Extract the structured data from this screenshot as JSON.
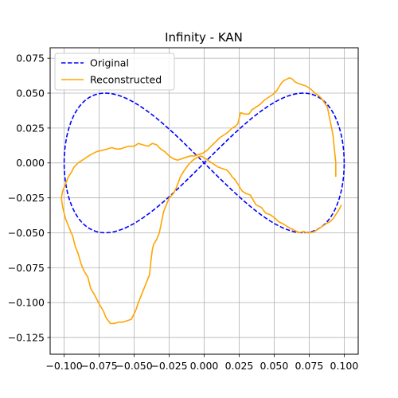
{
  "chart_data": {
    "type": "line",
    "title": "Infinity - KAN",
    "xlabel": "",
    "ylabel": "",
    "xlim": [
      -0.11,
      0.11
    ],
    "ylim": [
      -0.137,
      0.0825
    ],
    "grid": true,
    "legend_placement": "top-left",
    "xticks": [
      -0.1,
      -0.075,
      -0.05,
      -0.025,
      0.0,
      0.025,
      0.05,
      0.075,
      0.1
    ],
    "xtick_labels": [
      "−0.100",
      "−0.075",
      "−0.050",
      "−0.025",
      "0.000",
      "0.025",
      "0.050",
      "0.075",
      "0.100"
    ],
    "yticks": [
      -0.125,
      -0.1,
      -0.075,
      -0.05,
      -0.025,
      0.0,
      0.025,
      0.05,
      0.075
    ],
    "ytick_labels": [
      "−0.125",
      "−0.100",
      "−0.075",
      "−0.050",
      "−0.025",
      "0.000",
      "0.025",
      "0.050",
      "0.075"
    ],
    "series": [
      {
        "name": "Original",
        "color": "#0000ff",
        "style": "dashed",
        "shape": "lemniscate of Gerono: x = 0.1*cos(t), y = 0.05*sin(2t)",
        "x": [
          0.1,
          0.0924,
          0.0707,
          0.0383,
          0.0,
          -0.0383,
          -0.0707,
          -0.0924,
          -0.1,
          -0.0924,
          -0.0707,
          -0.0383,
          0.0,
          0.0383,
          0.0707,
          0.0924,
          0.1
        ],
        "y": [
          0.0,
          0.0354,
          0.05,
          0.0354,
          0.0,
          -0.0354,
          -0.05,
          -0.0354,
          0.0,
          0.0354,
          0.05,
          0.0354,
          0.0,
          -0.0354,
          -0.05,
          -0.0354,
          0.0
        ]
      },
      {
        "name": "Reconstructed",
        "color": "#ffa500",
        "style": "solid",
        "x": [
          0.098,
          0.096,
          0.094,
          0.092,
          0.09,
          0.088,
          0.085,
          0.082,
          0.079,
          0.076,
          0.073,
          0.071,
          0.068,
          0.064,
          0.06,
          0.057,
          0.053,
          0.05,
          0.047,
          0.044,
          0.041,
          0.037,
          0.033,
          0.03,
          0.027,
          0.024,
          0.022,
          0.02,
          0.018,
          0.016,
          0.013,
          0.01,
          0.007,
          0.004,
          0.001,
          -0.002,
          -0.005,
          -0.008,
          -0.011,
          -0.014,
          -0.017,
          -0.02,
          -0.022,
          -0.025,
          -0.027,
          -0.029,
          -0.03,
          -0.031,
          -0.032,
          -0.034,
          -0.036,
          -0.037,
          -0.038,
          -0.039,
          -0.041,
          -0.043,
          -0.045,
          -0.047,
          -0.049,
          -0.052,
          -0.055,
          -0.058,
          -0.061,
          -0.064,
          -0.067,
          -0.07,
          -0.072,
          -0.075,
          -0.078,
          -0.081,
          -0.083,
          -0.086,
          -0.088,
          -0.09,
          -0.092,
          -0.094,
          -0.095,
          -0.097,
          -0.099,
          -0.101,
          -0.102,
          -0.101,
          -0.099,
          -0.097,
          -0.095,
          -0.093,
          -0.09,
          -0.087,
          -0.084,
          -0.081,
          -0.077,
          -0.073,
          -0.069,
          -0.066,
          -0.063,
          -0.06,
          -0.057,
          -0.054,
          -0.05,
          -0.047,
          -0.044,
          -0.04,
          -0.037,
          -0.034,
          -0.031,
          -0.028,
          -0.025,
          -0.022,
          -0.019,
          -0.016,
          -0.013,
          -0.01,
          -0.007,
          -0.004,
          -0.001,
          0.002,
          0.005,
          0.008,
          0.011,
          0.014,
          0.017,
          0.02,
          0.022,
          0.024,
          0.026,
          0.029,
          0.032,
          0.034,
          0.037,
          0.04,
          0.043,
          0.046,
          0.049,
          0.052,
          0.055,
          0.057,
          0.059,
          0.061,
          0.063,
          0.065,
          0.067,
          0.07,
          0.073,
          0.076,
          0.079,
          0.082,
          0.084,
          0.086,
          0.088,
          0.089,
          0.09,
          0.091,
          0.092,
          0.093,
          0.094,
          0.094
        ],
        "y": [
          -0.03,
          -0.034,
          -0.037,
          -0.04,
          -0.042,
          -0.043,
          -0.045,
          -0.047,
          -0.049,
          -0.05,
          -0.05,
          -0.049,
          -0.05,
          -0.048,
          -0.046,
          -0.044,
          -0.042,
          -0.039,
          -0.037,
          -0.036,
          -0.032,
          -0.03,
          -0.023,
          -0.022,
          -0.02,
          -0.015,
          -0.012,
          -0.01,
          -0.007,
          -0.005,
          -0.004,
          -0.003,
          -0.001,
          0.001,
          0.003,
          0.005,
          0.004,
          0.002,
          -0.001,
          -0.005,
          -0.01,
          -0.018,
          -0.022,
          -0.025,
          -0.03,
          -0.035,
          -0.04,
          -0.045,
          -0.05,
          -0.055,
          -0.058,
          -0.062,
          -0.07,
          -0.08,
          -0.085,
          -0.09,
          -0.095,
          -0.1,
          -0.106,
          -0.112,
          -0.113,
          -0.114,
          -0.114,
          -0.115,
          -0.115,
          -0.111,
          -0.106,
          -0.101,
          -0.095,
          -0.09,
          -0.082,
          -0.077,
          -0.072,
          -0.065,
          -0.06,
          -0.052,
          -0.05,
          -0.045,
          -0.04,
          -0.032,
          -0.025,
          -0.02,
          -0.015,
          -0.01,
          -0.007,
          -0.003,
          0.0,
          0.002,
          0.004,
          0.006,
          0.008,
          0.009,
          0.01,
          0.011,
          0.01,
          0.01,
          0.011,
          0.012,
          0.012,
          0.014,
          0.013,
          0.012,
          0.014,
          0.013,
          0.01,
          0.008,
          0.005,
          0.003,
          0.002,
          0.003,
          0.004,
          0.005,
          0.005,
          0.006,
          0.007,
          0.009,
          0.012,
          0.015,
          0.018,
          0.02,
          0.022,
          0.025,
          0.026,
          0.028,
          0.036,
          0.035,
          0.035,
          0.038,
          0.04,
          0.042,
          0.045,
          0.047,
          0.049,
          0.052,
          0.057,
          0.059,
          0.06,
          0.061,
          0.06,
          0.058,
          0.057,
          0.056,
          0.055,
          0.053,
          0.05,
          0.048,
          0.046,
          0.043,
          0.04,
          0.035,
          0.03,
          0.025,
          0.02,
          0.01,
          0.0,
          -0.01
        ]
      }
    ]
  }
}
